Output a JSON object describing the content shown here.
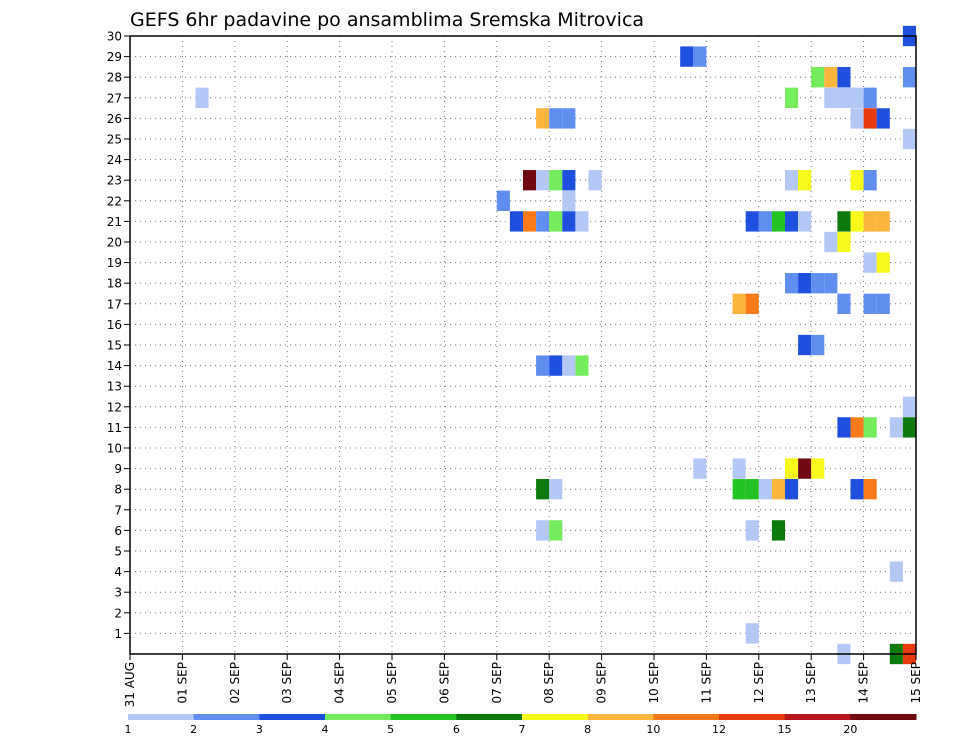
{
  "chart_data": {
    "type": "heatmap",
    "title": "GEFS 6hr padavine po ansamblima Sremska Mitrovica",
    "xlabel": "",
    "ylabel": "",
    "x_ticks": [
      "31 AUG",
      "01 SEP",
      "02 SEP",
      "03 SEP",
      "04 SEP",
      "05 SEP",
      "06 SEP",
      "07 SEP",
      "08 SEP",
      "09 SEP",
      "10 SEP",
      "11 SEP",
      "12 SEP",
      "13 SEP",
      "14 SEP",
      "15 SEP"
    ],
    "y_ticks": [
      "1",
      "2",
      "3",
      "4",
      "5",
      "6",
      "7",
      "8",
      "9",
      "10",
      "11",
      "12",
      "13",
      "14",
      "15",
      "16",
      "17",
      "18",
      "19",
      "20",
      "21",
      "22",
      "23",
      "24",
      "25",
      "26",
      "27",
      "28",
      "29",
      "30"
    ],
    "xlim_days": [
      0,
      15
    ],
    "ylim_members": [
      0,
      30
    ],
    "step_hours": 6,
    "grid": "dotted",
    "colorbar": {
      "labels": [
        "1",
        "2",
        "3",
        "4",
        "5",
        "6",
        "7",
        "8",
        "10",
        "12",
        "15",
        "20"
      ],
      "colors": [
        "#b4c8f5",
        "#5f8ef0",
        "#1f4fde",
        "#75ec5c",
        "#22c322",
        "#0c7a0c",
        "#f8f81c",
        "#fbb43c",
        "#f97a18",
        "#e93a0f",
        "#b8161b",
        "#6e0a10"
      ]
    },
    "cells": [
      {
        "member": 30,
        "day": 14.75,
        "level": 2
      },
      {
        "member": 29,
        "day": 10.5,
        "level": 2
      },
      {
        "member": 29,
        "day": 10.75,
        "level": 1
      },
      {
        "member": 28,
        "day": 13.0,
        "level": 3
      },
      {
        "member": 28,
        "day": 13.25,
        "level": 7
      },
      {
        "member": 28,
        "day": 13.5,
        "level": 2
      },
      {
        "member": 28,
        "day": 14.75,
        "level": 1
      },
      {
        "member": 27,
        "day": 1.25,
        "level": 0
      },
      {
        "member": 27,
        "day": 12.5,
        "level": 3
      },
      {
        "member": 27,
        "day": 13.25,
        "level": 0
      },
      {
        "member": 27,
        "day": 13.5,
        "level": 0
      },
      {
        "member": 27,
        "day": 13.75,
        "level": 0
      },
      {
        "member": 27,
        "day": 14.0,
        "level": 1
      },
      {
        "member": 26,
        "day": 7.75,
        "level": 7
      },
      {
        "member": 26,
        "day": 8.0,
        "level": 1
      },
      {
        "member": 26,
        "day": 8.25,
        "level": 1
      },
      {
        "member": 26,
        "day": 13.75,
        "level": 0
      },
      {
        "member": 26,
        "day": 14.0,
        "level": 9
      },
      {
        "member": 26,
        "day": 14.25,
        "level": 2
      },
      {
        "member": 25,
        "day": 14.75,
        "level": 0
      },
      {
        "member": 23,
        "day": 7.5,
        "level": 11
      },
      {
        "member": 23,
        "day": 7.75,
        "level": 0
      },
      {
        "member": 23,
        "day": 8.0,
        "level": 3
      },
      {
        "member": 23,
        "day": 8.25,
        "level": 2
      },
      {
        "member": 23,
        "day": 8.75,
        "level": 0
      },
      {
        "member": 23,
        "day": 12.5,
        "level": 0
      },
      {
        "member": 23,
        "day": 12.75,
        "level": 6
      },
      {
        "member": 23,
        "day": 13.75,
        "level": 6
      },
      {
        "member": 23,
        "day": 14.0,
        "level": 1
      },
      {
        "member": 22,
        "day": 7.0,
        "level": 1
      },
      {
        "member": 22,
        "day": 8.25,
        "level": 0
      },
      {
        "member": 21,
        "day": 7.25,
        "level": 2
      },
      {
        "member": 21,
        "day": 7.5,
        "level": 8
      },
      {
        "member": 21,
        "day": 7.75,
        "level": 1
      },
      {
        "member": 21,
        "day": 8.0,
        "level": 3
      },
      {
        "member": 21,
        "day": 8.25,
        "level": 2
      },
      {
        "member": 21,
        "day": 8.5,
        "level": 0
      },
      {
        "member": 21,
        "day": 11.75,
        "level": 2
      },
      {
        "member": 21,
        "day": 12.0,
        "level": 1
      },
      {
        "member": 21,
        "day": 12.25,
        "level": 4
      },
      {
        "member": 21,
        "day": 12.5,
        "level": 2
      },
      {
        "member": 21,
        "day": 12.75,
        "level": 0
      },
      {
        "member": 21,
        "day": 13.5,
        "level": 5
      },
      {
        "member": 21,
        "day": 13.75,
        "level": 6
      },
      {
        "member": 21,
        "day": 14.0,
        "level": 7
      },
      {
        "member": 21,
        "day": 14.25,
        "level": 7
      },
      {
        "member": 20,
        "day": 13.25,
        "level": 0
      },
      {
        "member": 20,
        "day": 13.5,
        "level": 6
      },
      {
        "member": 19,
        "day": 14.0,
        "level": 0
      },
      {
        "member": 19,
        "day": 14.25,
        "level": 6
      },
      {
        "member": 18,
        "day": 12.5,
        "level": 1
      },
      {
        "member": 18,
        "day": 12.75,
        "level": 2
      },
      {
        "member": 18,
        "day": 13.0,
        "level": 1
      },
      {
        "member": 18,
        "day": 13.25,
        "level": 1
      },
      {
        "member": 17,
        "day": 11.5,
        "level": 7
      },
      {
        "member": 17,
        "day": 11.75,
        "level": 8
      },
      {
        "member": 17,
        "day": 13.5,
        "level": 1
      },
      {
        "member": 17,
        "day": 14.0,
        "level": 1
      },
      {
        "member": 17,
        "day": 14.25,
        "level": 1
      },
      {
        "member": 15,
        "day": 12.75,
        "level": 2
      },
      {
        "member": 15,
        "day": 13.0,
        "level": 1
      },
      {
        "member": 14,
        "day": 7.75,
        "level": 1
      },
      {
        "member": 14,
        "day": 8.0,
        "level": 2
      },
      {
        "member": 14,
        "day": 8.25,
        "level": 0
      },
      {
        "member": 14,
        "day": 8.5,
        "level": 3
      },
      {
        "member": 12,
        "day": 14.75,
        "level": 0
      },
      {
        "member": 11,
        "day": 13.5,
        "level": 2
      },
      {
        "member": 11,
        "day": 13.75,
        "level": 8
      },
      {
        "member": 11,
        "day": 14.0,
        "level": 3
      },
      {
        "member": 11,
        "day": 14.5,
        "level": 0
      },
      {
        "member": 11,
        "day": 14.75,
        "level": 5
      },
      {
        "member": 9,
        "day": 10.75,
        "level": 0
      },
      {
        "member": 9,
        "day": 11.5,
        "level": 0
      },
      {
        "member": 9,
        "day": 12.5,
        "level": 6
      },
      {
        "member": 9,
        "day": 12.75,
        "level": 11
      },
      {
        "member": 9,
        "day": 13.0,
        "level": 6
      },
      {
        "member": 8,
        "day": 7.75,
        "level": 5
      },
      {
        "member": 8,
        "day": 8.0,
        "level": 0
      },
      {
        "member": 8,
        "day": 11.5,
        "level": 4
      },
      {
        "member": 8,
        "day": 11.75,
        "level": 4
      },
      {
        "member": 8,
        "day": 12.0,
        "level": 0
      },
      {
        "member": 8,
        "day": 12.25,
        "level": 7
      },
      {
        "member": 8,
        "day": 12.5,
        "level": 2
      },
      {
        "member": 8,
        "day": 13.75,
        "level": 2
      },
      {
        "member": 8,
        "day": 14.0,
        "level": 8
      },
      {
        "member": 6,
        "day": 7.75,
        "level": 0
      },
      {
        "member": 6,
        "day": 8.0,
        "level": 3
      },
      {
        "member": 6,
        "day": 11.75,
        "level": 0
      },
      {
        "member": 6,
        "day": 12.25,
        "level": 5
      },
      {
        "member": 4,
        "day": 14.5,
        "level": 0
      },
      {
        "member": 1,
        "day": 11.75,
        "level": 0
      },
      {
        "member": 0,
        "day": 13.5,
        "level": 0
      },
      {
        "member": 0,
        "day": 14.5,
        "level": 5
      },
      {
        "member": 0,
        "day": 14.75,
        "level": 9
      }
    ]
  }
}
